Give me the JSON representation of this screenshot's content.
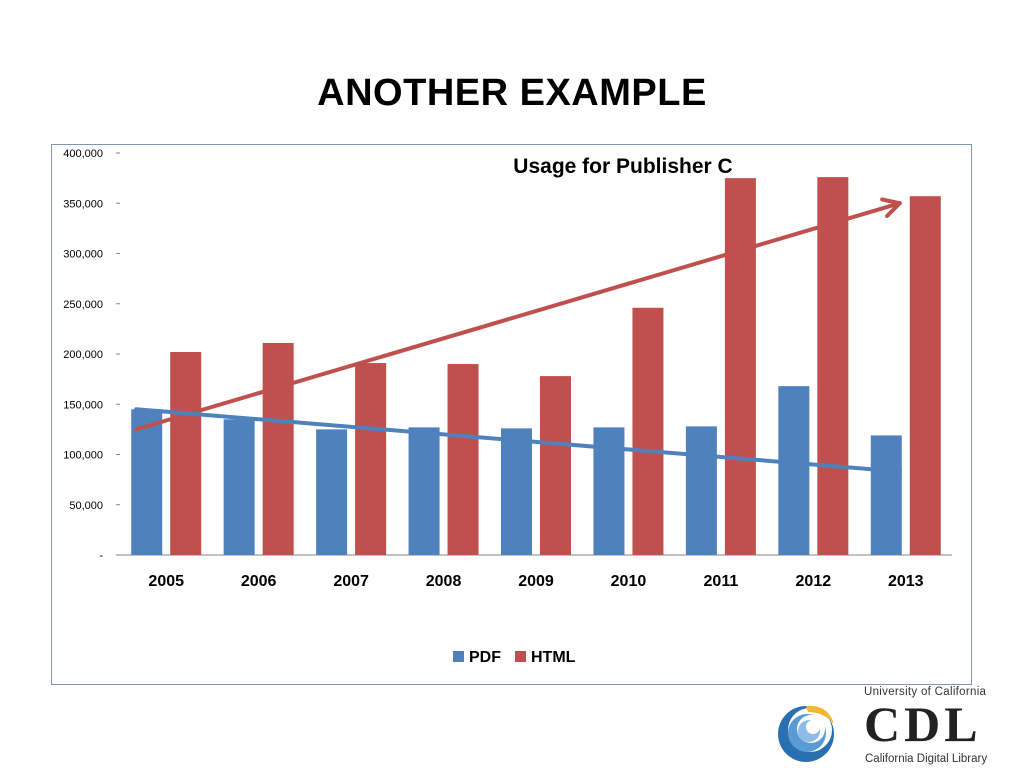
{
  "slide": {
    "title": "ANOTHER EXAMPLE"
  },
  "chart_data": {
    "type": "bar",
    "title": "Usage for Publisher C",
    "categories": [
      "2005",
      "2006",
      "2007",
      "2008",
      "2009",
      "2010",
      "2011",
      "2012",
      "2013"
    ],
    "series": [
      {
        "name": "PDF",
        "color": "#4f81bd",
        "values": [
          145000,
          135000,
          125000,
          127000,
          126000,
          127000,
          128000,
          168000,
          119000
        ]
      },
      {
        "name": "HTML",
        "color": "#c0504d",
        "values": [
          202000,
          211000,
          191000,
          190000,
          178000,
          246000,
          375000,
          376000,
          357000
        ]
      }
    ],
    "ylim": [
      0,
      400000
    ],
    "yticks": [
      0,
      50000,
      100000,
      150000,
      200000,
      250000,
      300000,
      350000,
      400000
    ],
    "ytick_labels": [
      "-",
      "50,000",
      "100,000",
      "150,000",
      "200,000",
      "250,000",
      "300,000",
      "350,000",
      "400,000"
    ],
    "grid": false,
    "legend_position": "bottom",
    "annotations": [
      {
        "type": "trend-arrow",
        "series": "HTML",
        "color": "#c0504d",
        "from": {
          "x": "2005",
          "y": 125000
        },
        "to": {
          "x": "2013",
          "y": 350000
        }
      },
      {
        "type": "trend-arrow",
        "series": "PDF",
        "color": "#4f81bd",
        "from": {
          "x": "2005",
          "y": 145000
        },
        "to": {
          "x": "2013",
          "y": 83000
        }
      }
    ]
  },
  "logo": {
    "top_text": "University of California",
    "main_text": "CDL",
    "bottom_text": "California Digital Library"
  }
}
